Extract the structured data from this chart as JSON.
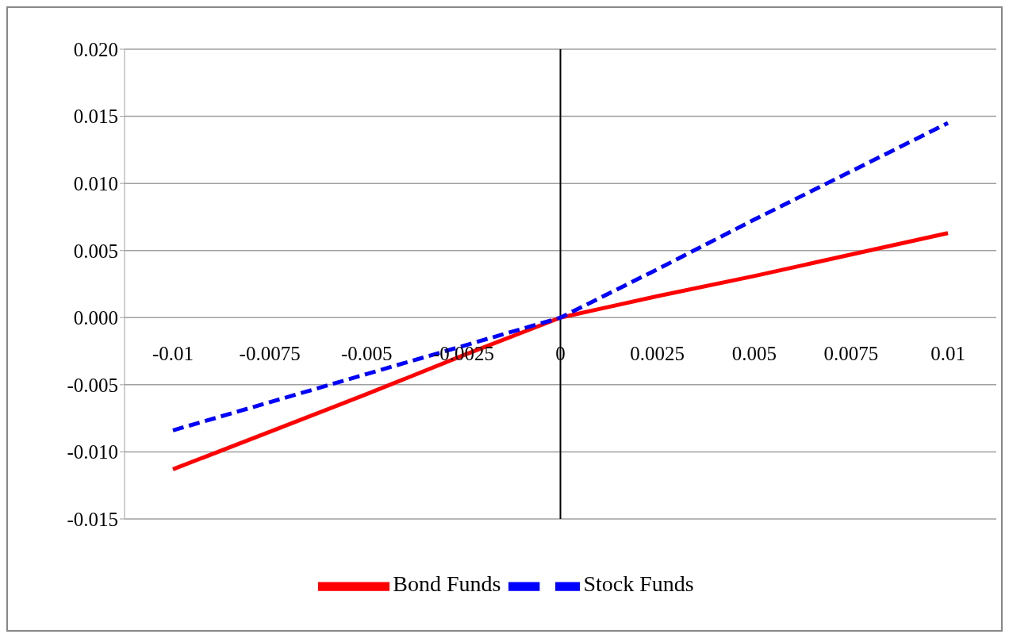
{
  "chart_data": {
    "type": "line",
    "categories": [
      "-0.01",
      "-0.0075",
      "-0.005",
      "-0.0025",
      "0",
      "0.0025",
      "0.005",
      "0.0075",
      "0.01"
    ],
    "series": [
      {
        "name": "Bond Funds",
        "color": "#ff0000",
        "line_style": "solid",
        "values": [
          -0.0113,
          -0.0085,
          -0.0057,
          -0.0028,
          0,
          0.0016,
          0.0031,
          0.0047,
          0.0063
        ]
      },
      {
        "name": "Stock Funds",
        "color": "#0000ff",
        "line_style": "dashed",
        "values": [
          -0.0084,
          -0.0063,
          -0.0042,
          -0.0021,
          0,
          0.0036,
          0.0073,
          0.0109,
          0.0145
        ]
      }
    ],
    "ylim": [
      -0.015,
      0.02
    ],
    "yticks": [
      {
        "value": -0.015,
        "label": "-0.015"
      },
      {
        "value": -0.01,
        "label": "-0.010"
      },
      {
        "value": -0.005,
        "label": "-0.005"
      },
      {
        "value": 0,
        "label": "0.000"
      },
      {
        "value": 0.005,
        "label": "0.005"
      },
      {
        "value": 0.01,
        "label": "0.010"
      },
      {
        "value": 0.015,
        "label": "0.015"
      },
      {
        "value": 0.02,
        "label": "0.020"
      }
    ],
    "ref_lines": [
      {
        "axis": "x",
        "value": "0",
        "color": "#000000"
      }
    ],
    "grid": "y",
    "legend": "bottom",
    "marker": "none"
  }
}
